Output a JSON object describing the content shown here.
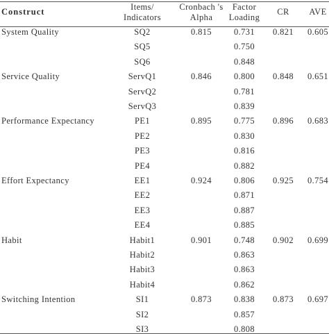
{
  "table": {
    "headers": [
      [
        "Construct"
      ],
      [
        "Items/",
        "Indicators"
      ],
      [
        "Cronbach 's",
        "Alpha"
      ],
      [
        "Factor",
        "Loading"
      ],
      [
        "CR"
      ],
      [
        "AVE"
      ]
    ],
    "groups": [
      {
        "construct": "System Quality",
        "alpha": "0.815",
        "cr": "0.821",
        "ave": "0.605",
        "items": [
          {
            "item": "SQ2",
            "loading": "0.731"
          },
          {
            "item": "SQ5",
            "loading": "0.750"
          },
          {
            "item": "SQ6",
            "loading": "0.848"
          }
        ]
      },
      {
        "construct": "Service Quality",
        "alpha": "0.846",
        "cr": "0.848",
        "ave": "0.651",
        "items": [
          {
            "item": "ServQ1",
            "loading": "0.800"
          },
          {
            "item": "ServQ2",
            "loading": "0.781"
          },
          {
            "item": "ServQ3",
            "loading": "0.839"
          }
        ]
      },
      {
        "construct": "Performance Expectancy",
        "alpha": "0.895",
        "cr": "0.896",
        "ave": "0.683",
        "items": [
          {
            "item": "PE1",
            "loading": "0.775"
          },
          {
            "item": "PE2",
            "loading": "0.830"
          },
          {
            "item": "PE3",
            "loading": "0.816"
          },
          {
            "item": "PE4",
            "loading": "0.882"
          }
        ]
      },
      {
        "construct": "Effort Expectancy",
        "alpha": "0.924",
        "cr": "0.925",
        "ave": "0.754",
        "items": [
          {
            "item": "EE1",
            "loading": "0.806"
          },
          {
            "item": "EE2",
            "loading": "0.871"
          },
          {
            "item": "EE3",
            "loading": "0.887"
          },
          {
            "item": "EE4",
            "loading": "0.885"
          }
        ]
      },
      {
        "construct": "Habit",
        "alpha": "0.901",
        "cr": "0.902",
        "ave": "0.699",
        "items": [
          {
            "item": "Habit1",
            "loading": "0.748"
          },
          {
            "item": "Habit2",
            "loading": "0.863"
          },
          {
            "item": "Habit3",
            "loading": "0.863"
          },
          {
            "item": "Habit4",
            "loading": "0.862"
          }
        ]
      },
      {
        "construct": "Switching Intention",
        "alpha": "0.873",
        "cr": "0.873",
        "ave": "0.697",
        "items": [
          {
            "item": "SI1",
            "loading": "0.838"
          },
          {
            "item": "SI2",
            "loading": "0.857"
          },
          {
            "item": "SI3",
            "loading": "0.808"
          }
        ]
      }
    ]
  }
}
